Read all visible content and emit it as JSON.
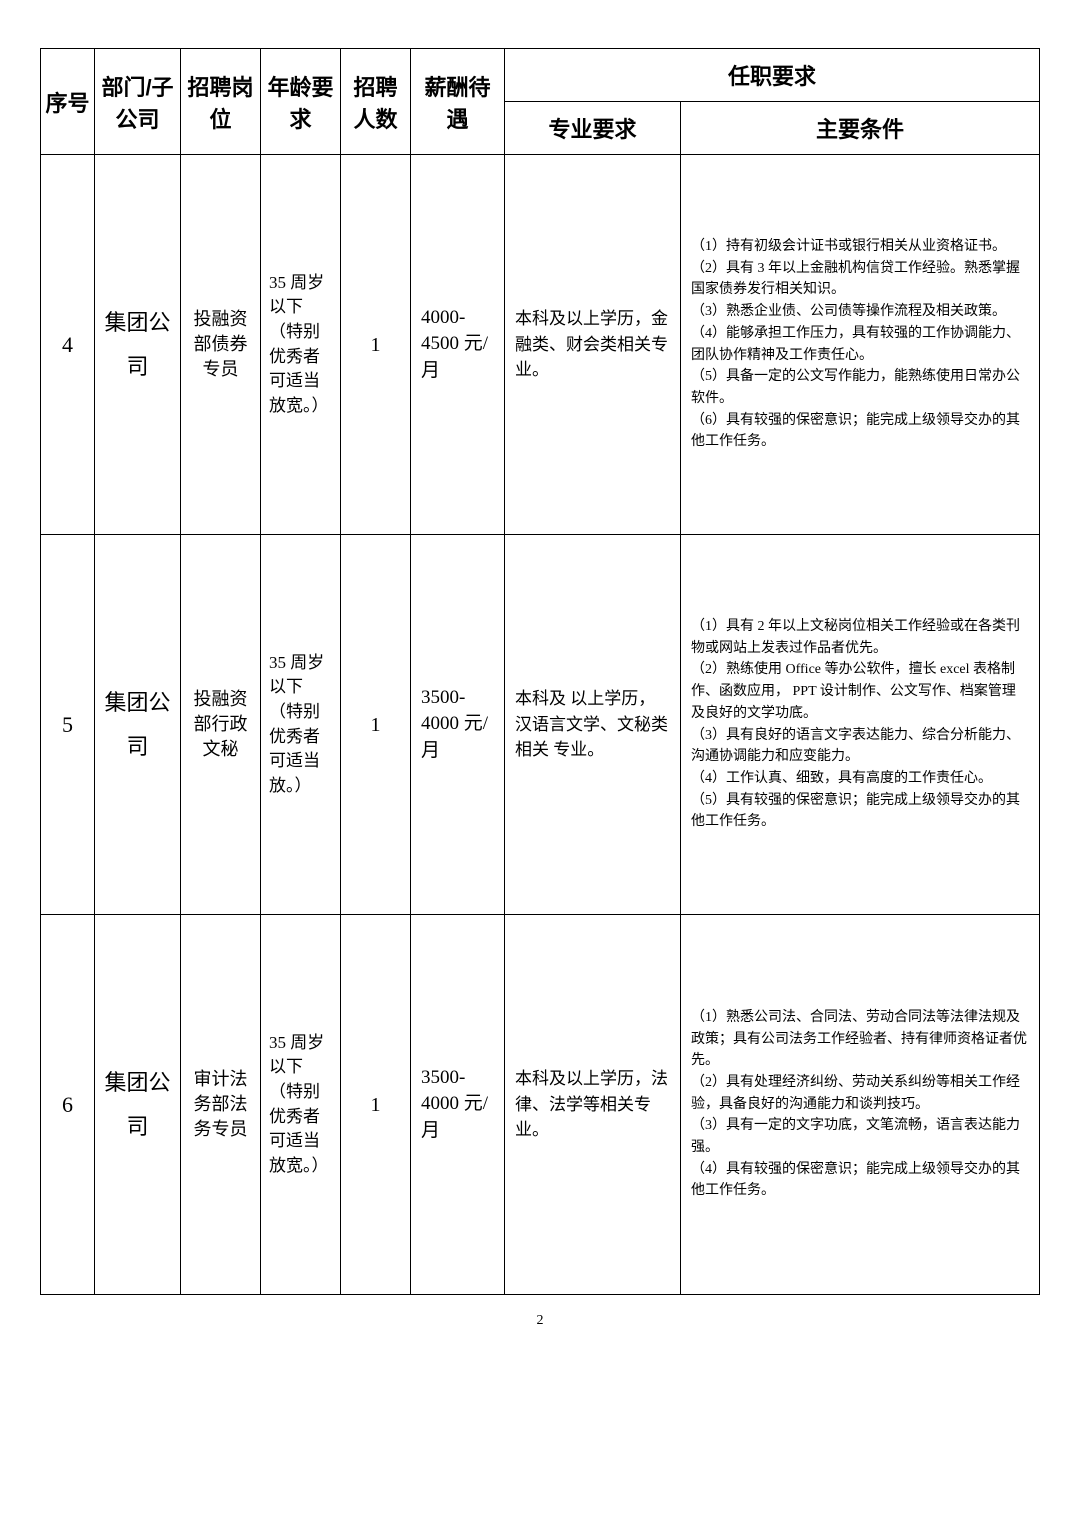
{
  "headers": {
    "seq": "序号",
    "dept": "部门/子公司",
    "position": "招聘岗位",
    "age": "年龄要求",
    "count": "招聘人数",
    "salary": "薪酬待遇",
    "jobreq": "任职要求",
    "major": "专业要求",
    "mainreq": "主要条件"
  },
  "rows": [
    {
      "seq": "4",
      "dept": "集团公司",
      "position": "投融资部债券专员",
      "age": "35 周岁以下（特别优秀者可适当放宽。）",
      "count": "1",
      "salary": "4000-4500 元/月",
      "major": "本科及以上学历，金融类、财会类相关专业。",
      "req": "（1）持有初级会计证书或银行相关从业资格证书。\n（2）具有 3 年以上金融机构信贷工作经验。熟悉掌握国家债券发行相关知识。\n（3）熟悉企业债、公司债等操作流程及相关政策。\n（4）能够承担工作压力，具有较强的工作协调能力、团队协作精神及工作责任心。\n（5）具备一定的公文写作能力，能熟练使用日常办公软件。\n（6）具有较强的保密意识；能完成上级领导交办的其他工作任务。"
    },
    {
      "seq": "5",
      "dept": "集团公司",
      "position": "投融资部行政文秘",
      "age": "35 周岁以下（特别优秀者可适当放。）",
      "count": "1",
      "salary": "3500-4000 元/月",
      "major": "本科及 以上学历，汉语言文学、文秘类相关 专业。",
      "req": "（1）具有 2 年以上文秘岗位相关工作经验或在各类刊物或网站上发表过作品者优先。\n（2）熟练使用  Office 等办公软件，擅长 excel 表格制作、函数应用，  PPT 设计制作、公文写作、档案管理及良好的文学功底。\n（3）具有良好的语言文字表达能力、综合分析能力、沟通协调能力和应变能力。\n（4）工作认真、细致，具有高度的工作责任心。\n（5）具有较强的保密意识；能完成上级领导交办的其他工作任务。"
    },
    {
      "seq": "6",
      "dept": "集团公司",
      "position": "审计法务部法务专员",
      "age": "35 周岁以下（特别优秀者可适当放宽。）",
      "count": "1",
      "salary": "3500-4000 元/月",
      "major": "本科及以上学历，法律、法学等相关专业。",
      "req": "（1）熟悉公司法、合同法、劳动合同法等法律法规及政策；具有公司法务工作经验者、持有律师资格证者优先。\n（2）具有处理经济纠纷、劳动关系纠纷等相关工作经验，具备良好的沟通能力和谈判技巧。\n（3）具有一定的文字功底，文笔流畅，语言表达能力强。\n（4）具有较强的保密意识；能完成上级领导交办的其他工作任务。"
    }
  ],
  "page_number": "2"
}
